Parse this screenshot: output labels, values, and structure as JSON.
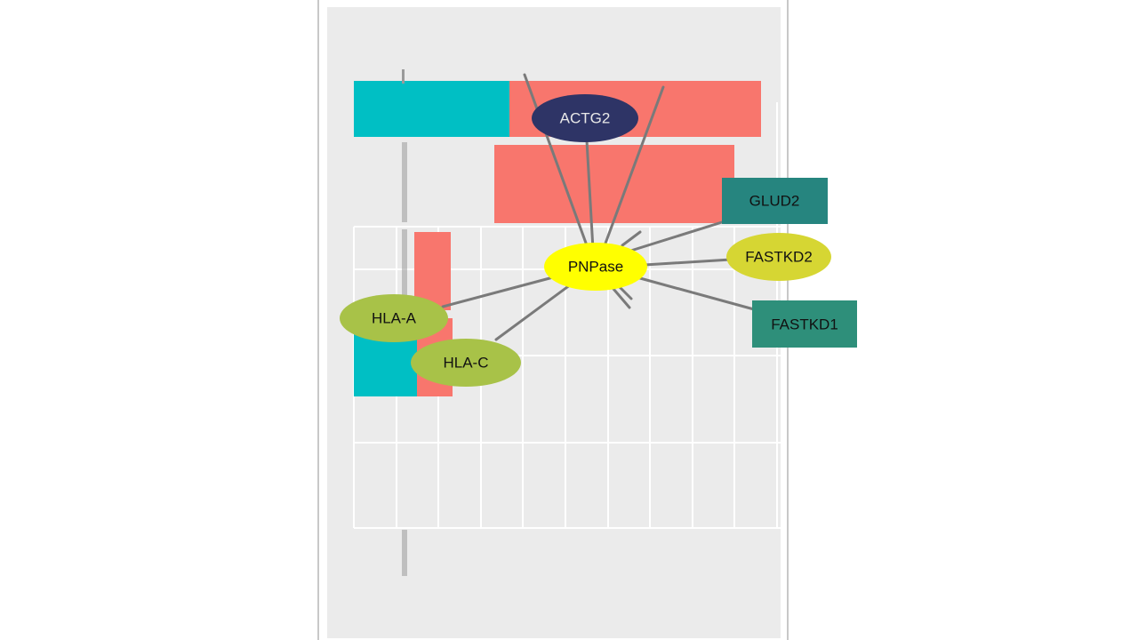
{
  "network": {
    "center": {
      "label": "PNPase",
      "color": "#ffff00",
      "shape": "ellipse"
    },
    "nodes": [
      {
        "id": "actg2",
        "label": "ACTG2",
        "color": "#2e3466",
        "shape": "ellipse",
        "text": "light"
      },
      {
        "id": "glud2",
        "label": "GLUD2",
        "color": "#26857f",
        "shape": "box"
      },
      {
        "id": "fastkd2",
        "label": "FASTKD2",
        "color": "#d6d633",
        "shape": "ellipse"
      },
      {
        "id": "fastkd1",
        "label": "FASTKD1",
        "color": "#2e8f7a",
        "shape": "box"
      },
      {
        "id": "hla_a",
        "label": "HLA-A",
        "color": "#a8c248",
        "shape": "ellipse"
      },
      {
        "id": "hla_c",
        "label": "HLA-C",
        "color": "#a8c248",
        "shape": "ellipse"
      }
    ]
  },
  "background_chart": {
    "colors": {
      "teal": "#00bfc4",
      "salmon": "#f8766d",
      "panel": "#ebebeb",
      "grid": "#ffffff"
    }
  },
  "edge_color": "#7a7a7a"
}
